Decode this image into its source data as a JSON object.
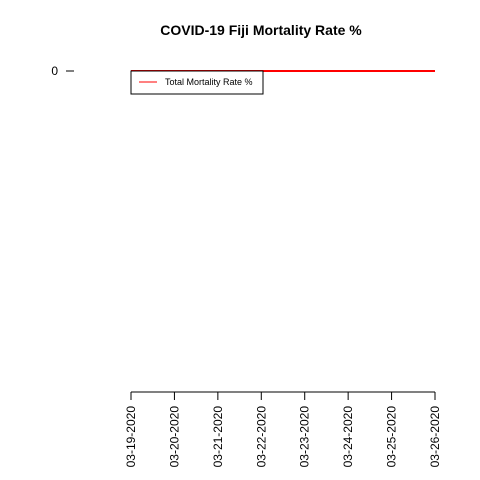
{
  "chart_data": {
    "type": "line",
    "title": "COVID-19 Fiji Mortality Rate %",
    "xlabel": "",
    "ylabel": "",
    "x": [
      "03-19-2020",
      "03-20-2020",
      "03-21-2020",
      "03-22-2020",
      "03-23-2020",
      "03-24-2020",
      "03-25-2020",
      "03-26-2020"
    ],
    "series": [
      {
        "name": "Total Mortality Rate %",
        "color": "#ff0000",
        "values": [
          0,
          0,
          0,
          0,
          0,
          0,
          0,
          0
        ]
      }
    ],
    "y_ticks": [
      "0"
    ],
    "grid": false,
    "legend": "top-left"
  }
}
